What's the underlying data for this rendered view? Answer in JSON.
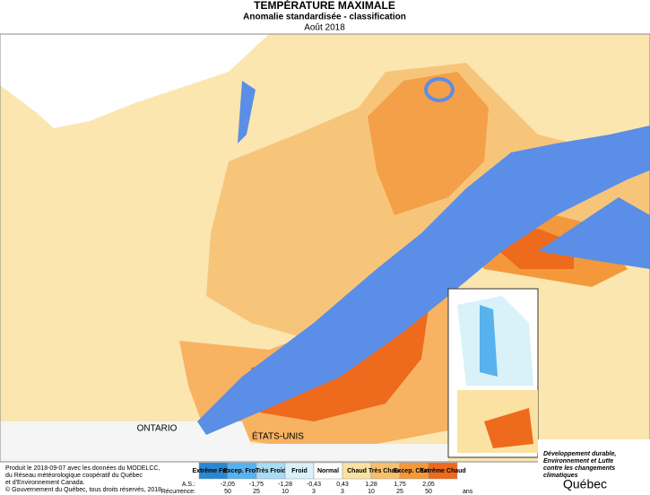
{
  "header": {
    "title": "TEMPÉRATURE MAXIMALE",
    "subtitle": "Anomalie standardisée - classification",
    "date": "Août 2018"
  },
  "map_labels": {
    "ontario": "ONTARIO",
    "usa": "ÉTATS-UNIS"
  },
  "legend": {
    "classes": [
      {
        "label": "Extrême Froid",
        "color": "#2a87d4"
      },
      {
        "label": "Excep. Froid",
        "color": "#57b2ee"
      },
      {
        "label": "Très Froid",
        "color": "#a8dcf4"
      },
      {
        "label": "Froid",
        "color": "#d9f1f8"
      },
      {
        "label": "Normal",
        "color": "#ffffff"
      },
      {
        "label": "Chaud",
        "color": "#fbe2a2"
      },
      {
        "label": "Très Chaud",
        "color": "#f7bf6e"
      },
      {
        "label": "Excep. Chaud",
        "color": "#f3993b"
      },
      {
        "label": "Extrême Chaud",
        "color": "#ee6a1c"
      }
    ],
    "as_label": "A.S.:",
    "as_values": [
      "-2,05",
      "-1,75",
      "-1,28",
      "-0,43",
      "0,43",
      "1,28",
      "1,75",
      "2,05"
    ],
    "recurrence_label": "Récurrence:",
    "recurrence_values": [
      "50",
      "25",
      "10",
      "3",
      "3",
      "10",
      "25",
      "50"
    ],
    "recurrence_unit": "ans"
  },
  "credits": {
    "lines": [
      "Produit le 2018-09-07 avec les données du MODELCC,",
      "du Réseau météorologique coopératif du Québec",
      "et d'Environnement Canada."
    ],
    "copyright": "© Gouvernement du Québec, tous droits réservés, 2018"
  },
  "logo": {
    "ministry": [
      "Développement durable,",
      "Environnement et Lutte",
      "contre les changements",
      "climatiques"
    ],
    "name": "Québec"
  }
}
